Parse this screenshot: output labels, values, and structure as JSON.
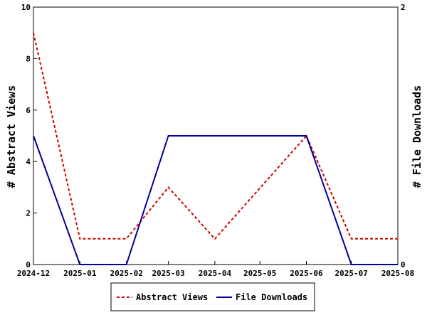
{
  "chart_data": {
    "type": "line",
    "categories": [
      "2024-12",
      "2025-01",
      "2025-02",
      "2025-03",
      "2025-04",
      "2025-05",
      "2025-06",
      "2025-07",
      "2025-08"
    ],
    "x_dates": [
      "2024-12-01",
      "2025-01-01",
      "2025-02-01",
      "2025-03-01",
      "2025-04-01",
      "2025-05-01",
      "2025-06-01",
      "2025-07-01",
      "2025-08-01"
    ],
    "series": [
      {
        "name": "Abstract Views",
        "axis": "left",
        "color": "#cc0000",
        "line_style": "dashed",
        "x": [
          "2024-12-01",
          "2025-01-01",
          "2025-02-01",
          "2025-03-01",
          "2025-04-01",
          "2025-06-01",
          "2025-07-01",
          "2025-08-01"
        ],
        "values": [
          9,
          1,
          1,
          3,
          1,
          5,
          1,
          1
        ]
      },
      {
        "name": "File Downloads",
        "axis": "right",
        "color": "#000099",
        "line_style": "solid",
        "x": [
          "2024-12-01",
          "2025-01-01",
          "2025-02-01",
          "2025-03-01",
          "2025-06-01",
          "2025-07-01",
          "2025-08-01"
        ],
        "values": [
          1,
          0,
          0,
          1,
          1,
          0,
          0
        ]
      }
    ],
    "ylabel": "# Abstract Views",
    "y2label": "# File Downloads",
    "ylim": [
      0,
      10
    ],
    "y2lim": [
      0,
      2
    ],
    "yticks": [
      "0",
      "2",
      "4",
      "6",
      "8",
      "10"
    ],
    "y2ticks": [
      "0",
      "2"
    ],
    "grid": false,
    "legend_position": "bottom"
  }
}
